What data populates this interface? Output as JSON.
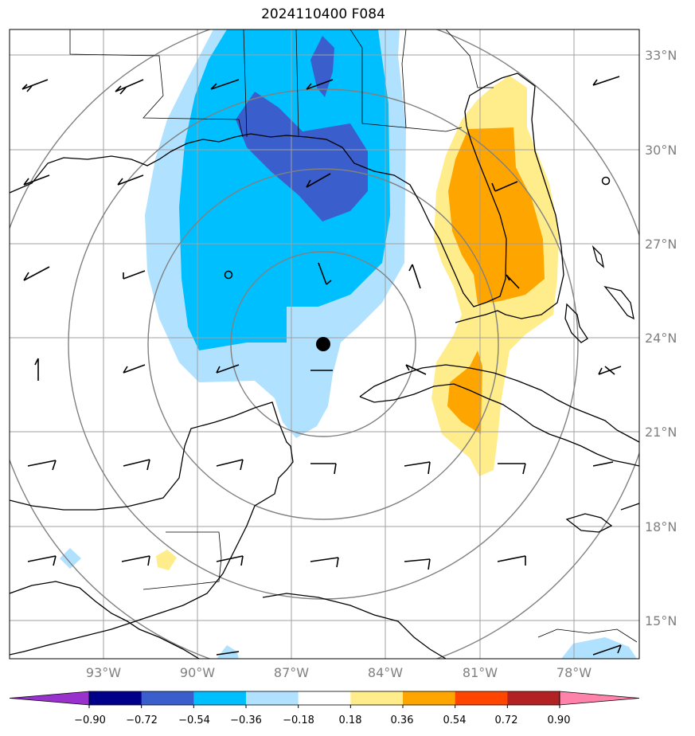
{
  "title": "2024110400 F084",
  "lat_labels": [
    "33°N",
    "30°N",
    "27°N",
    "24°N",
    "21°N",
    "18°N",
    "15°N"
  ],
  "lon_labels": [
    "93°W",
    "90°W",
    "87°W",
    "84°W",
    "81°W",
    "78°W"
  ],
  "colorbar": {
    "ticks": [
      "−0.90",
      "−0.72",
      "−0.54",
      "−0.36",
      "−0.18",
      "0.18",
      "0.36",
      "0.54",
      "0.72",
      "0.90"
    ],
    "colors": [
      "#9932cc",
      "#00008b",
      "#3a5fcd",
      "#00bfff",
      "#b0e2ff",
      "#ffffff",
      "#ffec8b",
      "#ffa500",
      "#ff4500",
      "#b22222",
      "#ff82ab"
    ]
  },
  "colors": {
    "light_blue": "#b0e2ff",
    "deep_sky_blue": "#00bfff",
    "royal_blue": "#3a5fcd",
    "light_yellow": "#ffec8b",
    "orange": "#ffa500",
    "grid": "#a0a0a0",
    "range_ring": "#808080",
    "coast": "#000000"
  }
}
